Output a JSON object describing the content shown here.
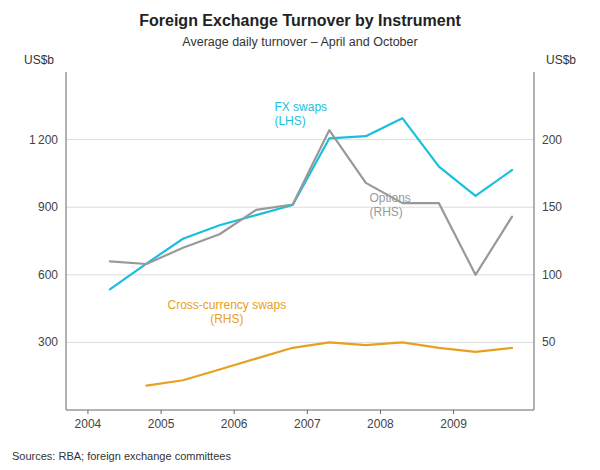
{
  "chart_data": {
    "type": "line",
    "title": "Foreign Exchange Turnover by Instrument",
    "subtitle": "Average daily turnover – April and October",
    "ylabel": "US$b",
    "y2label": "US$b",
    "source": "Sources: RBA; foreign exchange committees",
    "x": [
      2004.3,
      2004.8,
      2005.3,
      2005.8,
      2006.3,
      2006.8,
      2007.3,
      2007.8,
      2008.3,
      2008.8,
      2009.3,
      2009.8
    ],
    "xlim": [
      2003.7,
      2010.1
    ],
    "xticks": [
      2004,
      2005,
      2006,
      2007,
      2008,
      2009
    ],
    "ylim": [
      0,
      1500
    ],
    "yticks": [
      300,
      600,
      900,
      {
        "value": 1200,
        "label": "1 200"
      }
    ],
    "y2lim": [
      0,
      250
    ],
    "y2ticks": [
      50,
      100,
      150,
      200
    ],
    "grid": true,
    "series": [
      {
        "color": "#1ABFDF",
        "values": [
          535,
          650,
          760,
          820,
          865,
          910,
          1205,
          1215,
          1295,
          1080,
          950,
          1065
        ]
      },
      {
        "color": "#999999",
        "axis": "y2",
        "values": [
          110,
          108,
          120,
          130,
          148,
          152,
          207,
          168,
          153,
          153,
          100,
          143
        ]
      },
      {
        "color": "#E8A020",
        "axis": "y2",
        "values": [
          null,
          18,
          22,
          30,
          38,
          46,
          50,
          48,
          50,
          46,
          43,
          46
        ]
      }
    ],
    "annotations": [
      {
        "text": "FX swaps\n(LHS)",
        "x": 2006.55,
        "y": 1245,
        "color": "#1ABFDF"
      },
      {
        "text": "Options\n(RHS)",
        "x": 2007.85,
        "y": 162,
        "axis": "y2",
        "color": "#999999"
      },
      {
        "text": "Cross-currency swaps\n(RHS)",
        "x": 2005.9,
        "y": 370,
        "color": "#E8A020"
      }
    ]
  }
}
